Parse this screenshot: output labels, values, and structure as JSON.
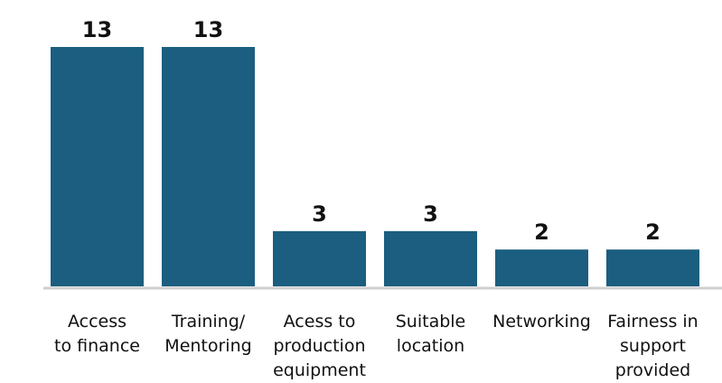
{
  "chart_data": {
    "type": "bar",
    "categories": [
      "Access\nto finance",
      "Training/\nMentoring",
      "Acess to\nproduction\nequipment",
      "Suitable\nlocation",
      "Networking",
      "Fairness in\nsupport\nprovided"
    ],
    "values": [
      13,
      13,
      3,
      3,
      2,
      2
    ],
    "color": "#1b5e80"
  }
}
